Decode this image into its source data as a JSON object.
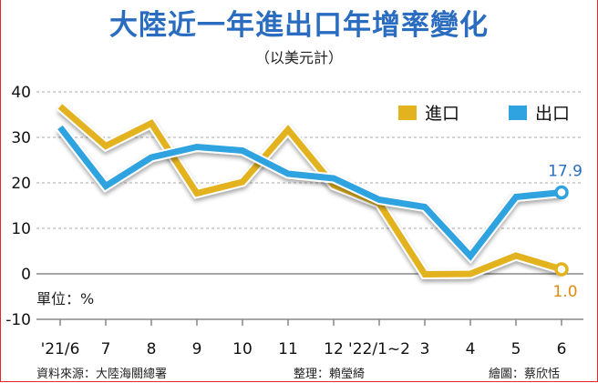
{
  "chart_data": {
    "type": "line",
    "title": "大陸近一年進出口年增率變化",
    "subtitle": "（以美元計）",
    "unit_label": "單位：%",
    "categories": [
      "'21/6",
      "7",
      "8",
      "9",
      "10",
      "11",
      "12",
      "'22/1~2",
      "3",
      "4",
      "5",
      "6"
    ],
    "yticks": [
      40,
      30,
      20,
      10,
      0,
      -10
    ],
    "ylim": [
      -10,
      40
    ],
    "grid": true,
    "legend_position": "top-right",
    "series": [
      {
        "name": "進口",
        "color": "#e3b21f",
        "values": [
          36.8,
          28.1,
          33.1,
          17.7,
          20.2,
          31.7,
          19.5,
          15.5,
          -0.1,
          0.0,
          4.0,
          1.0
        ],
        "end_label": "1.0",
        "end_label_color": "#e08a10"
      },
      {
        "name": "出口",
        "color": "#2fa3e0",
        "values": [
          32.2,
          19.3,
          25.6,
          27.9,
          27.1,
          22.0,
          21.0,
          16.3,
          14.7,
          3.9,
          16.9,
          17.9
        ],
        "end_label": "17.9",
        "end_label_color": "#2a6cc0"
      }
    ]
  },
  "footer": {
    "source": "資料來源：大陸海關總署",
    "compiled": "整理：賴瑩綺",
    "graphic": "繪圖：蔡欣恬"
  }
}
